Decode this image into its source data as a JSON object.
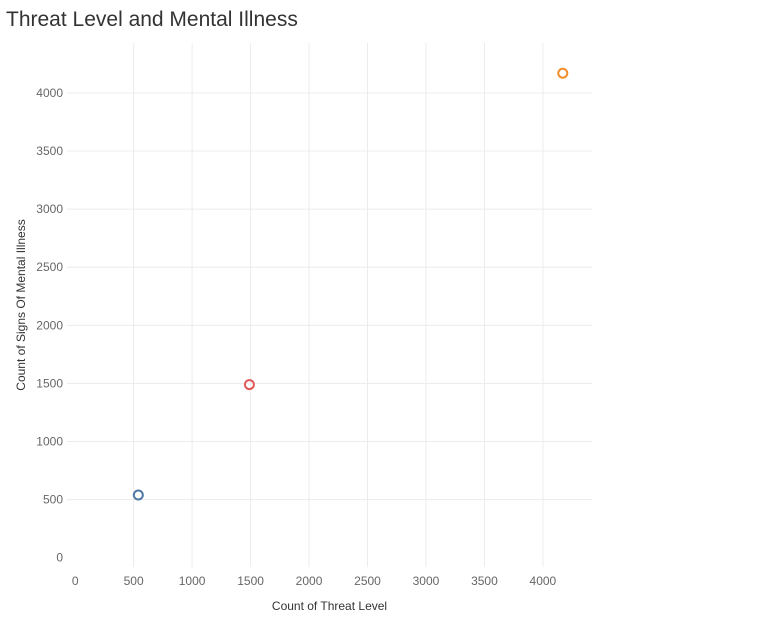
{
  "chart_data": {
    "type": "scatter",
    "title": "Threat Level and Mental Illness",
    "xlabel": "Count of Threat Level",
    "ylabel": "Count of Signs Of Mental Illness",
    "xlim": [
      -70,
      4420
    ],
    "ylim": [
      -80,
      4430
    ],
    "x_ticks": [
      0,
      500,
      1000,
      1500,
      2000,
      2500,
      3000,
      3500,
      4000
    ],
    "y_ticks": [
      0,
      500,
      1000,
      1500,
      2000,
      2500,
      3000,
      3500,
      4000
    ],
    "grid": true,
    "points": [
      {
        "x": 540,
        "y": 540,
        "color": "#4e79a7"
      },
      {
        "x": 1490,
        "y": 1490,
        "color": "#e15759"
      },
      {
        "x": 4170,
        "y": 4170,
        "color": "#f28e2b"
      }
    ]
  }
}
